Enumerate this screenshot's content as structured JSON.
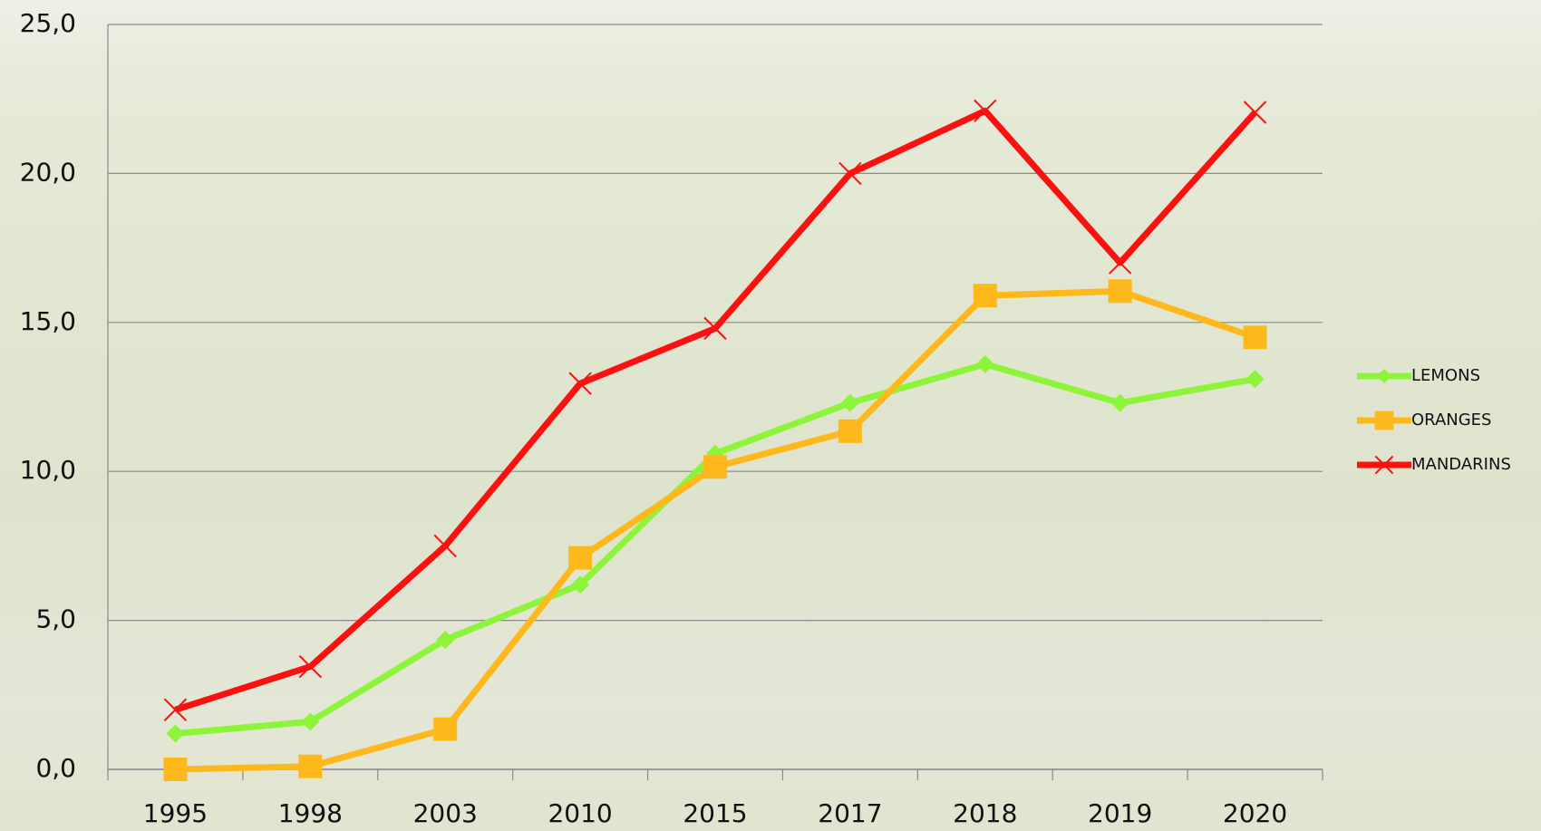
{
  "chart_data": {
    "type": "line",
    "categories": [
      "1995",
      "1998",
      "2003",
      "2010",
      "2015",
      "2017",
      "2018",
      "2019",
      "2020"
    ],
    "series": [
      {
        "name": "LEMONS",
        "color": "#8cf53a",
        "marker": "diamond",
        "values": [
          1.2,
          1.6,
          4.35,
          6.2,
          10.6,
          12.3,
          13.6,
          12.3,
          13.1
        ]
      },
      {
        "name": "ORANGES",
        "color": "#ffb81c",
        "marker": "square",
        "values": [
          0.0,
          0.1,
          1.35,
          7.1,
          10.15,
          11.35,
          15.9,
          16.05,
          14.5
        ]
      },
      {
        "name": "MANDARINS",
        "color": "#ff1010",
        "marker": "x",
        "values": [
          2.0,
          3.45,
          7.5,
          12.95,
          14.8,
          20.0,
          22.1,
          17.0,
          22.05
        ]
      }
    ],
    "ylim": [
      0,
      25
    ],
    "yticks": [
      {
        "value": 0,
        "label": "0,0"
      },
      {
        "value": 5,
        "label": "5,0"
      },
      {
        "value": 10,
        "label": "10,0"
      },
      {
        "value": 15,
        "label": "15,0"
      },
      {
        "value": 20,
        "label": "20,0"
      },
      {
        "value": 25,
        "label": "25,0"
      }
    ],
    "grid": true,
    "legend": "right"
  }
}
